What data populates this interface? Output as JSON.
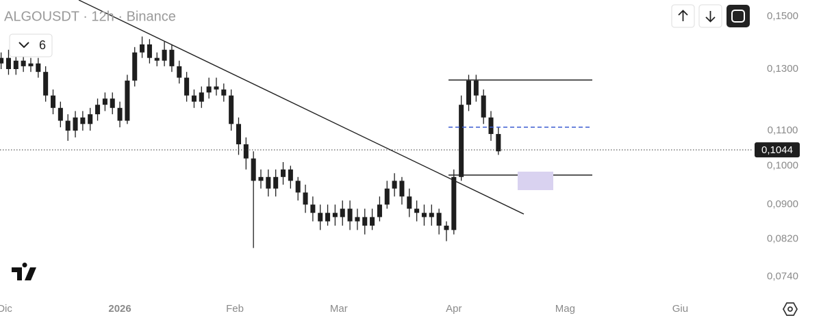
{
  "header": {
    "title": "ALGOUSDT · 12h · Binance",
    "indicator_count": 6
  },
  "chart_data": {
    "type": "candlestick",
    "color": "#1e1e1e",
    "log_scale": true,
    "x": [
      -32,
      -30,
      -28,
      -26,
      -24,
      -22,
      -20,
      -18,
      -16,
      -14,
      -12,
      -10,
      -8,
      -6,
      -4,
      -2,
      0,
      2,
      4,
      6,
      8,
      10,
      12,
      14,
      16,
      18,
      20,
      22,
      24,
      26,
      28,
      30,
      32,
      34,
      36,
      38,
      40,
      42,
      44,
      46,
      48,
      50,
      52,
      54,
      56,
      58,
      60,
      62,
      64,
      66,
      68,
      70,
      72,
      74,
      76,
      78,
      80,
      82,
      84,
      86,
      88,
      90,
      92,
      94,
      96,
      98,
      100,
      102
    ],
    "open": [
      0.132,
      0.134,
      0.13,
      0.133,
      0.131,
      0.132,
      0.129,
      0.121,
      0.117,
      0.113,
      0.11,
      0.114,
      0.112,
      0.115,
      0.118,
      0.12,
      0.117,
      0.113,
      0.126,
      0.136,
      0.139,
      0.134,
      0.133,
      0.137,
      0.131,
      0.127,
      0.121,
      0.119,
      0.122,
      0.124,
      0.123,
      0.121,
      0.112,
      0.106,
      0.102,
      0.096,
      0.097,
      0.094,
      0.097,
      0.099,
      0.096,
      0.093,
      0.09,
      0.088,
      0.086,
      0.088,
      0.087,
      0.089,
      0.086,
      0.087,
      0.085,
      0.087,
      0.09,
      0.094,
      0.096,
      0.092,
      0.089,
      0.088,
      0.087,
      0.088,
      0.085,
      0.084,
      0.097,
      0.118,
      0.126,
      0.121,
      0.114,
      0.109
    ],
    "high": [
      0.136,
      0.137,
      0.135,
      0.135,
      0.134,
      0.134,
      0.131,
      0.123,
      0.119,
      0.115,
      0.116,
      0.116,
      0.117,
      0.12,
      0.122,
      0.122,
      0.119,
      0.128,
      0.138,
      0.142,
      0.141,
      0.136,
      0.14,
      0.139,
      0.133,
      0.129,
      0.123,
      0.124,
      0.127,
      0.127,
      0.125,
      0.123,
      0.114,
      0.108,
      0.104,
      0.099,
      0.099,
      0.099,
      0.101,
      0.1,
      0.097,
      0.095,
      0.092,
      0.09,
      0.09,
      0.09,
      0.091,
      0.091,
      0.089,
      0.089,
      0.089,
      0.092,
      0.096,
      0.098,
      0.097,
      0.094,
      0.091,
      0.09,
      0.09,
      0.089,
      0.086,
      0.099,
      0.121,
      0.128,
      0.128,
      0.123,
      0.116,
      0.111
    ],
    "low": [
      0.13,
      0.128,
      0.128,
      0.129,
      0.129,
      0.127,
      0.119,
      0.115,
      0.111,
      0.107,
      0.108,
      0.11,
      0.11,
      0.113,
      0.116,
      0.115,
      0.111,
      0.112,
      0.124,
      0.134,
      0.132,
      0.131,
      0.131,
      0.129,
      0.125,
      0.119,
      0.117,
      0.117,
      0.12,
      0.121,
      0.119,
      0.11,
      0.103,
      0.099,
      0.08,
      0.094,
      0.092,
      0.092,
      0.095,
      0.094,
      0.091,
      0.088,
      0.086,
      0.084,
      0.085,
      0.085,
      0.085,
      0.084,
      0.084,
      0.083,
      0.084,
      0.086,
      0.089,
      0.092,
      0.09,
      0.087,
      0.086,
      0.085,
      0.085,
      0.083,
      0.0815,
      0.083,
      0.096,
      0.116,
      0.119,
      0.112,
      0.107,
      0.103
    ],
    "close": [
      0.134,
      0.13,
      0.133,
      0.131,
      0.132,
      0.129,
      0.121,
      0.117,
      0.113,
      0.11,
      0.114,
      0.112,
      0.115,
      0.118,
      0.12,
      0.117,
      0.113,
      0.126,
      0.136,
      0.139,
      0.134,
      0.133,
      0.137,
      0.131,
      0.127,
      0.121,
      0.119,
      0.122,
      0.124,
      0.123,
      0.121,
      0.112,
      0.106,
      0.102,
      0.096,
      0.097,
      0.094,
      0.097,
      0.099,
      0.096,
      0.093,
      0.09,
      0.088,
      0.086,
      0.088,
      0.087,
      0.089,
      0.086,
      0.087,
      0.085,
      0.087,
      0.09,
      0.094,
      0.096,
      0.092,
      0.089,
      0.088,
      0.087,
      0.088,
      0.085,
      0.084,
      0.097,
      0.118,
      0.126,
      0.121,
      0.114,
      0.109,
      0.104
    ],
    "xlim": [
      -32.3,
      167.9
    ],
    "xticks": [
      {
        "value": -31,
        "label": "Dic"
      },
      {
        "value": 0,
        "label": "2026"
      },
      {
        "value": 31,
        "label": "Feb"
      },
      {
        "value": 59,
        "label": "Mar"
      },
      {
        "value": 90,
        "label": "Apr"
      },
      {
        "value": 120,
        "label": "Mag"
      },
      {
        "value": 151,
        "label": "Giu"
      }
    ],
    "ylim": [
      0.0693,
      0.1568
    ],
    "yticks": [
      {
        "value": 0.15,
        "label": "0,1500"
      },
      {
        "value": 0.13,
        "label": "0,1300"
      },
      {
        "value": 0.11,
        "label": "0,1100"
      },
      {
        "value": 0.1,
        "label": "0,1000"
      },
      {
        "value": 0.09,
        "label": "0,0900"
      },
      {
        "value": 0.082,
        "label": "0,0820"
      },
      {
        "value": 0.074,
        "label": "0,0740"
      }
    ],
    "last_price": {
      "value": 0.1044,
      "label": "0,1044"
    }
  }
}
